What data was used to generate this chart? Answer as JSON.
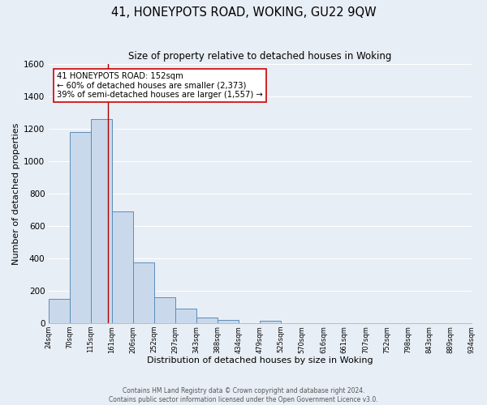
{
  "title": "41, HONEYPOTS ROAD, WOKING, GU22 9QW",
  "subtitle": "Size of property relative to detached houses in Woking",
  "xlabel": "Distribution of detached houses by size in Woking",
  "ylabel": "Number of detached properties",
  "bin_edges": [
    24,
    70,
    115,
    161,
    206,
    252,
    297,
    343,
    388,
    434,
    479,
    525,
    570,
    616,
    661,
    707,
    752,
    798,
    843,
    889,
    934
  ],
  "bar_heights": [
    150,
    1180,
    1260,
    690,
    375,
    160,
    90,
    35,
    20,
    0,
    15,
    0,
    0,
    0,
    0,
    0,
    0,
    0,
    0,
    0
  ],
  "bar_color": "#c9d9eb",
  "bar_edge_color": "#5b8db8",
  "vline_x": 152,
  "vline_color": "#aa0000",
  "ylim": [
    0,
    1600
  ],
  "yticks": [
    0,
    200,
    400,
    600,
    800,
    1000,
    1200,
    1400,
    1600
  ],
  "annotation_text": "41 HONEYPOTS ROAD: 152sqm\n← 60% of detached houses are smaller (2,373)\n39% of semi-detached houses are larger (1,557) →",
  "annotation_box_color": "#ffffff",
  "annotation_box_edge": "#cc0000",
  "footer_line1": "Contains HM Land Registry data © Crown copyright and database right 2024.",
  "footer_line2": "Contains public sector information licensed under the Open Government Licence v3.0.",
  "background_color": "#e8eef5",
  "grid_color": "#d0d8e4"
}
